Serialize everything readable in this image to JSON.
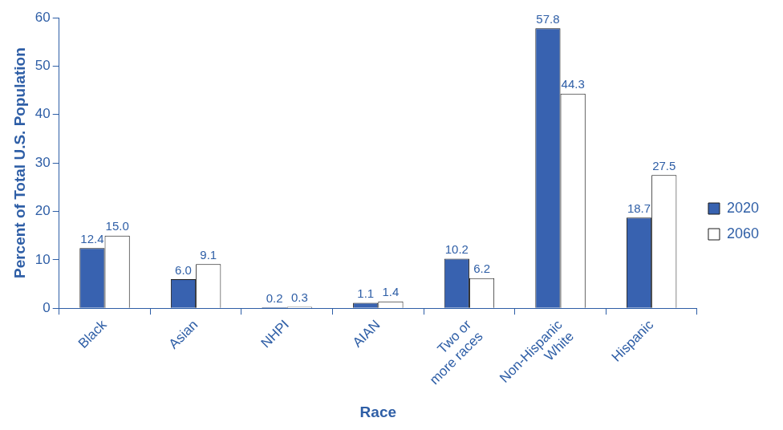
{
  "chart_data": {
    "type": "bar",
    "x_label": "Race",
    "y_label": "Percent of Total U.S. Population",
    "categories": [
      "Black",
      "Asian",
      "NHPI",
      "AIAN",
      "Two or more races",
      "Non-Hispanic White",
      "Hispanic"
    ],
    "series": [
      {
        "name": "2020",
        "color": "#3862b0",
        "values": [
          12.4,
          6.0,
          0.2,
          1.1,
          10.2,
          57.8,
          18.7
        ],
        "value_labels": [
          "12.4",
          "6.0",
          "0.2",
          "1.1",
          "10.2",
          "57.8",
          "18.7"
        ]
      },
      {
        "name": "2060",
        "color": "#ffffff",
        "values": [
          15.0,
          9.1,
          0.3,
          1.4,
          6.2,
          44.3,
          27.5
        ],
        "value_labels": [
          "15.0",
          "9.1",
          "0.3",
          "1.4",
          "6.2",
          "44.3",
          "27.5"
        ]
      }
    ],
    "ylim": [
      0,
      60
    ],
    "yticks": [
      0,
      10,
      20,
      30,
      40,
      50,
      60
    ],
    "grid": false,
    "legend": "right",
    "data_labels": true
  }
}
